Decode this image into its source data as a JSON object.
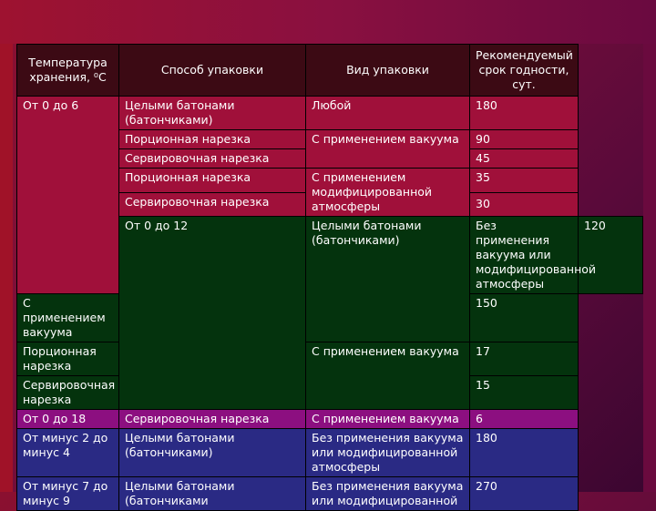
{
  "header": {
    "col1": "Температура хранения, ⁰С",
    "col2": "Способ упаковки",
    "col3": "Вид упаковки",
    "col4": "Рекомендуемый срок годности, сут."
  },
  "rows": {
    "temp_0_6": "От 0 до 6",
    "temp_0_12": "От 0 до 12",
    "temp_0_18": "От 0 до 18",
    "temp_m2_m4": "От минус 2 до минус 4",
    "temp_m7_m9": "От минус 7 до минус 9",
    "whole_loaves": "Целыми батонами (батончиками)",
    "whole_loaves_trunc": "Целыми батонами (батончиками",
    "portion_cut": "Порционная нарезка",
    "serving_cut": "Сервировочная нарезка",
    "any": "Любой",
    "vacuum": "С применением вакуума",
    "mod_atm": "С применением модифицированной атмосферы",
    "no_vacuum": "Без применения вакуума или модифицированной атмосферы",
    "no_vacuum_trunc": "Без применения вакуума или модифицированной",
    "v180": "180",
    "v90": "90",
    "v45": "45",
    "v35": "35",
    "v30": "30",
    "v120": "120",
    "v150": "150",
    "v17": "17",
    "v15": "15",
    "v6": "6",
    "v180b": "180",
    "v270": "270"
  },
  "colors": {
    "red_band": "#a0103a",
    "green_band": "#04330d",
    "purple_band": "#8c0f80",
    "blue_band": "#2a2a84"
  }
}
